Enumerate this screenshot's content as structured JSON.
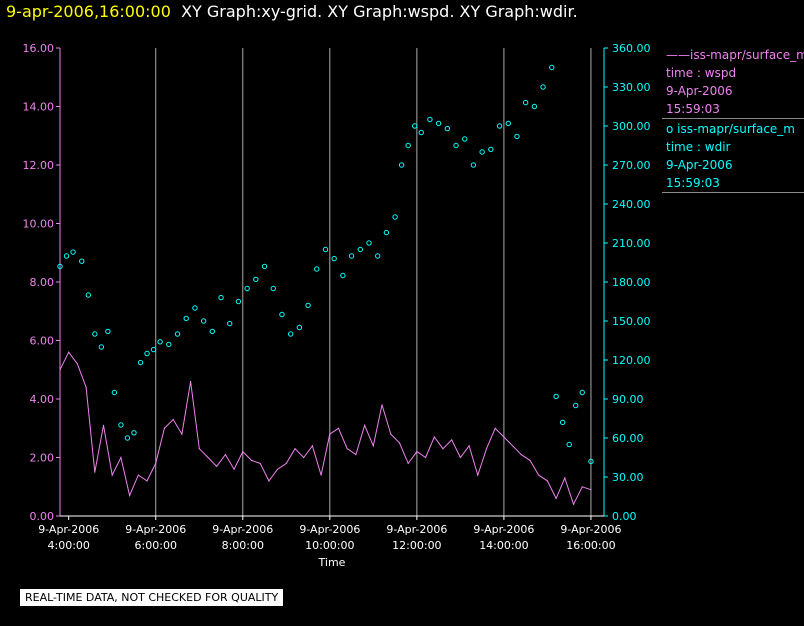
{
  "header": {
    "timestamp": "9-apr-2006,16:00:00",
    "graphs": "XY Graph:xy-grid.  XY Graph:wspd.  XY Graph:wdir."
  },
  "legend": [
    {
      "series": "——iss-mapr/surface_m",
      "field": "time : wspd",
      "date": "9-Apr-2006",
      "time": "15:59:03"
    },
    {
      "series": "o  iss-mapr/surface_m",
      "field": "time : wdir",
      "date": "9-Apr-2006",
      "time": "15:59:03"
    }
  ],
  "note": "REAL-TIME DATA, NOT CHECKED FOR QUALITY",
  "colors": {
    "wspd": "#ee82ee",
    "wdir": "#00ffff",
    "grid": "#aaaaaa",
    "axis": "#ffffff"
  },
  "chart_data": {
    "type": "line",
    "xlabel": "Time",
    "x_range_hours": [
      3.8,
      16.3
    ],
    "x_ticks": [
      {
        "date": "9-Apr-2006",
        "time": "4:00:00",
        "hour": 4
      },
      {
        "date": "9-Apr-2006",
        "time": "6:00:00",
        "hour": 6
      },
      {
        "date": "9-Apr-2006",
        "time": "8:00:00",
        "hour": 8
      },
      {
        "date": "9-Apr-2006",
        "time": "10:00:00",
        "hour": 10
      },
      {
        "date": "9-Apr-2006",
        "time": "12:00:00",
        "hour": 12
      },
      {
        "date": "9-Apr-2006",
        "time": "14:00:00",
        "hour": 14
      },
      {
        "date": "9-Apr-2006",
        "time": "16:00:00",
        "hour": 16
      }
    ],
    "y_left": {
      "ylim": [
        0,
        16
      ],
      "ticks": [
        "0.00",
        "2.00",
        "4.00",
        "6.00",
        "8.00",
        "10.00",
        "12.00",
        "14.00",
        "16.00"
      ]
    },
    "y_right": {
      "ylim": [
        0,
        360
      ],
      "ticks": [
        "0.00",
        "30.00",
        "60.00",
        "90.00",
        "120.00",
        "150.00",
        "180.00",
        "210.00",
        "240.00",
        "270.00",
        "300.00",
        "330.00",
        "360.00"
      ]
    },
    "series": [
      {
        "name": "wspd",
        "axis": "left",
        "style": "line",
        "x": [
          3.8,
          4.0,
          4.2,
          4.4,
          4.6,
          4.8,
          5.0,
          5.2,
          5.4,
          5.6,
          5.8,
          6.0,
          6.2,
          6.4,
          6.6,
          6.8,
          7.0,
          7.2,
          7.4,
          7.6,
          7.8,
          8.0,
          8.2,
          8.4,
          8.6,
          8.8,
          9.0,
          9.2,
          9.4,
          9.6,
          9.8,
          10.0,
          10.2,
          10.4,
          10.6,
          10.8,
          11.0,
          11.2,
          11.4,
          11.6,
          11.8,
          12.0,
          12.2,
          12.4,
          12.6,
          12.8,
          13.0,
          13.2,
          13.4,
          13.6,
          13.8,
          14.0,
          14.2,
          14.4,
          14.6,
          14.8,
          15.0,
          15.2,
          15.4,
          15.6,
          15.8,
          16.0
        ],
        "y": [
          5.0,
          5.6,
          5.2,
          4.4,
          1.5,
          3.1,
          1.4,
          2.0,
          0.7,
          1.4,
          1.2,
          1.8,
          3.0,
          3.3,
          2.8,
          4.6,
          2.3,
          2.0,
          1.7,
          2.1,
          1.6,
          2.2,
          1.9,
          1.8,
          1.2,
          1.6,
          1.8,
          2.3,
          2.0,
          2.4,
          1.4,
          2.8,
          3.0,
          2.3,
          2.1,
          3.1,
          2.4,
          3.8,
          2.8,
          2.5,
          1.8,
          2.2,
          2.0,
          2.7,
          2.3,
          2.6,
          2.0,
          2.4,
          1.4,
          2.3,
          3.0,
          2.7,
          2.4,
          2.1,
          1.9,
          1.4,
          1.2,
          0.6,
          1.3,
          0.4,
          1.0,
          0.9
        ]
      },
      {
        "name": "wdir",
        "axis": "right",
        "style": "markers",
        "x": [
          3.8,
          3.95,
          4.1,
          4.3,
          4.45,
          4.6,
          4.75,
          4.9,
          5.05,
          5.2,
          5.35,
          5.5,
          5.65,
          5.8,
          5.95,
          6.1,
          6.3,
          6.5,
          6.7,
          6.9,
          7.1,
          7.3,
          7.5,
          7.7,
          7.9,
          8.1,
          8.3,
          8.5,
          8.7,
          8.9,
          9.1,
          9.3,
          9.5,
          9.7,
          9.9,
          10.1,
          10.3,
          10.5,
          10.7,
          10.9,
          11.1,
          11.3,
          11.5,
          11.65,
          11.8,
          11.95,
          12.1,
          12.3,
          12.5,
          12.7,
          12.9,
          13.1,
          13.3,
          13.5,
          13.7,
          13.9,
          14.1,
          14.3,
          14.5,
          14.7,
          14.9,
          15.1,
          15.2,
          15.35,
          15.5,
          15.65,
          15.8,
          16.0
        ],
        "y": [
          192,
          200,
          203,
          196,
          170,
          140,
          130,
          142,
          95,
          70,
          60,
          64,
          118,
          125,
          128,
          134,
          132,
          140,
          152,
          160,
          150,
          142,
          168,
          148,
          165,
          175,
          182,
          192,
          175,
          155,
          140,
          145,
          162,
          190,
          205,
          198,
          185,
          200,
          205,
          210,
          200,
          218,
          230,
          270,
          285,
          300,
          295,
          305,
          302,
          298,
          285,
          290,
          270,
          280,
          282,
          300,
          302,
          292,
          318,
          315,
          330,
          345,
          92,
          72,
          55,
          85,
          95,
          42
        ]
      }
    ]
  }
}
